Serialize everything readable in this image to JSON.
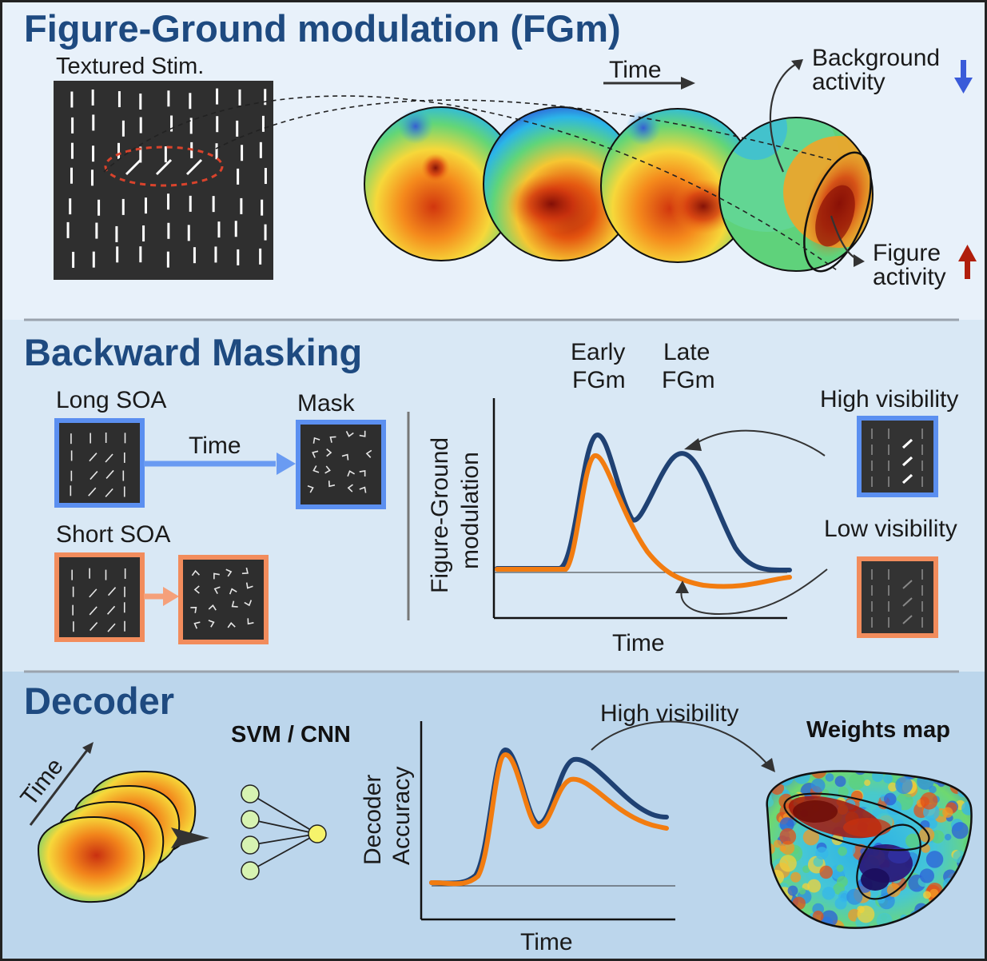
{
  "panels": {
    "fgm": {
      "title": "Figure-Ground modulation (FGm)",
      "stim_label": "Textured Stim.",
      "time_label": "Time",
      "background_label_line1": "Background",
      "background_label_line2": "activity",
      "figure_label_line1": "Figure",
      "figure_label_line2": "activity"
    },
    "masking": {
      "title": "Backward Masking",
      "long_soa": "Long SOA",
      "short_soa": "Short SOA",
      "mask": "Mask",
      "time_label": "Time",
      "early_line1": "Early",
      "early_line2": "FGm",
      "late_line1": "Late",
      "late_line2": "FGm",
      "ylabel_line1": "Figure-Ground",
      "ylabel_line2": "modulation",
      "xlabel": "Time",
      "high_visibility": "High visibility",
      "low_visibility": "Low visibility"
    },
    "decoder": {
      "title": "Decoder",
      "time_label": "Time",
      "model_label": "SVM / CNN",
      "ylabel_line1": "Decoder",
      "ylabel_line2": "Accuracy",
      "xlabel": "Time",
      "high_visibility": "High visibility",
      "weights_label": "Weights map"
    }
  },
  "colors": {
    "title": "#1e4a80",
    "panel1_bg": "#e8f1fa",
    "panel2_bg": "#d9e8f5",
    "panel3_bg": "#bcd6ec",
    "high_visibility": "#5b8ff0",
    "low_visibility": "#f28c5c",
    "curve_high": "#1f4173",
    "curve_low": "#f27c10",
    "background_arrow": "#3a5bd9",
    "figure_arrow": "#b01e0c"
  }
}
